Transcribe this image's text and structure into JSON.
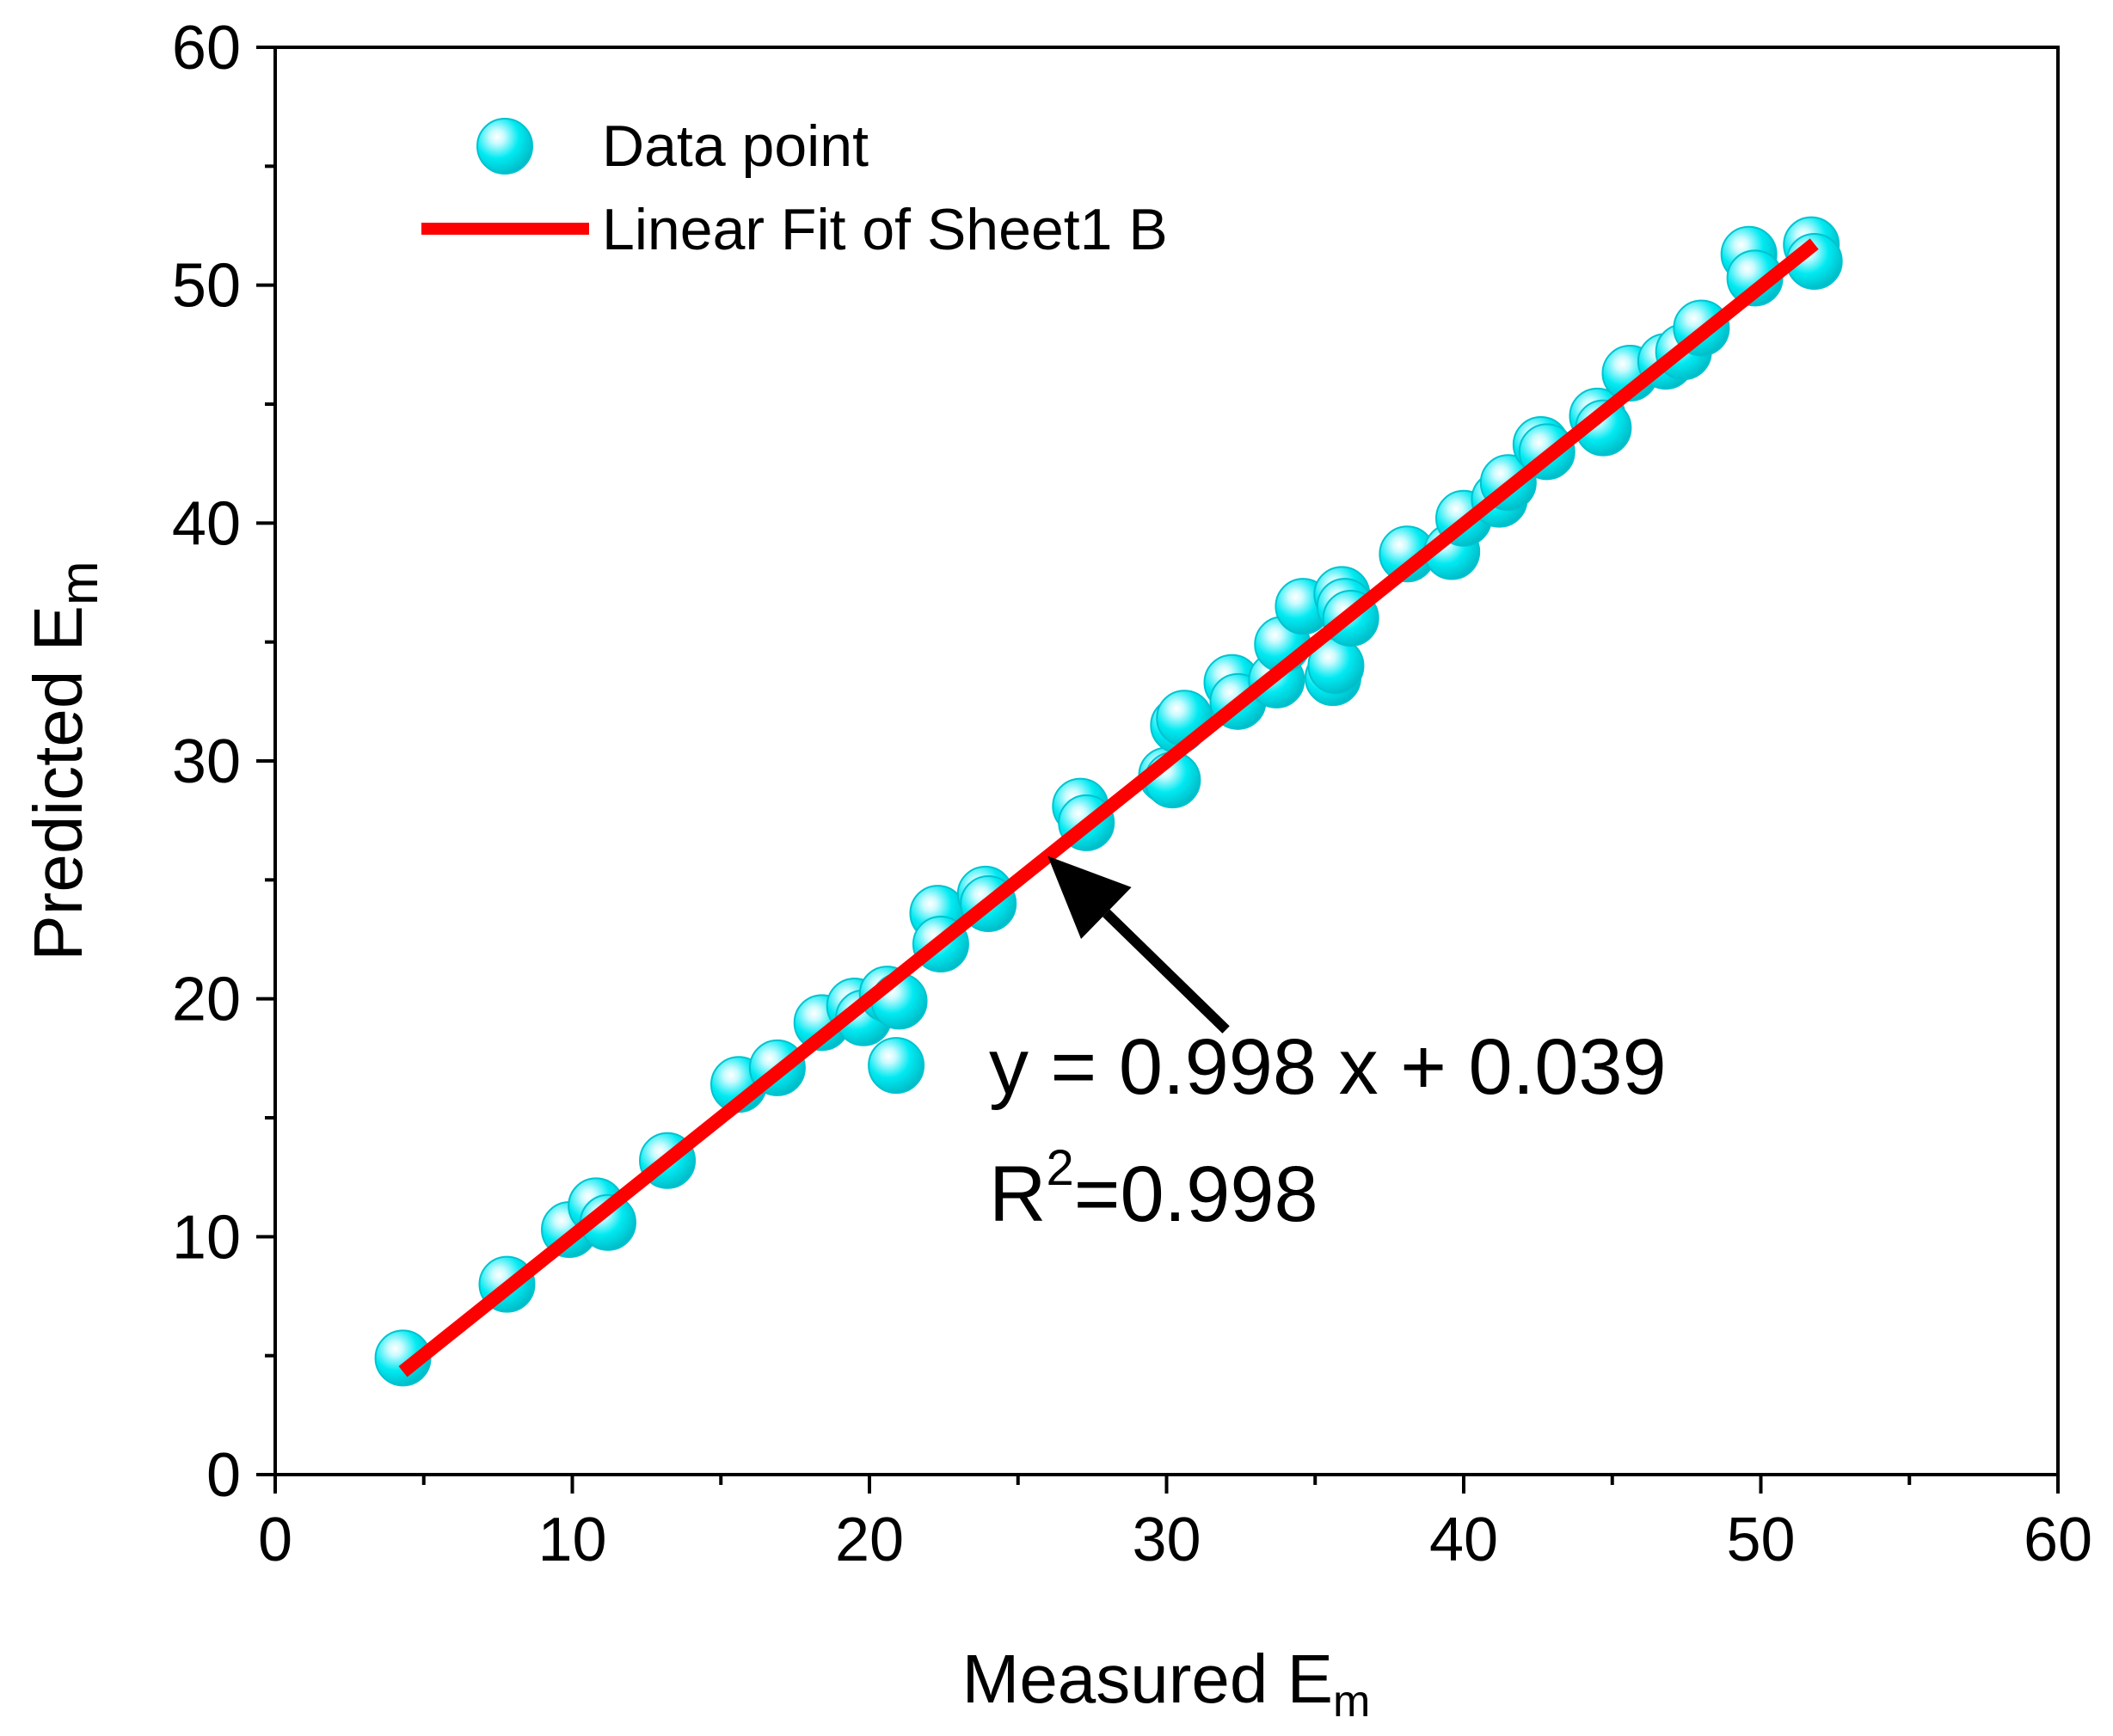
{
  "chart_data": {
    "type": "scatter",
    "title": "",
    "xlabel": {
      "main": "Measured E",
      "sub": "m"
    },
    "ylabel": {
      "main": "Predicted E",
      "sub": "m"
    },
    "xlim": [
      0,
      60
    ],
    "ylim": [
      0,
      60
    ],
    "xticks": [
      0,
      10,
      20,
      30,
      40,
      50,
      60
    ],
    "yticks": [
      0,
      10,
      20,
      30,
      40,
      50,
      60
    ],
    "minor_tick_step": 5,
    "legend": {
      "position": "top-left",
      "entries": [
        {
          "label": "Data point",
          "kind": "marker"
        },
        {
          "label": "Linear Fit of Sheet1 B",
          "kind": "line"
        }
      ]
    },
    "series": [
      {
        "name": "Data point",
        "color": "#00e5ee",
        "points": [
          [
            4.3,
            4.9
          ],
          [
            7.8,
            8.0
          ],
          [
            9.9,
            10.3
          ],
          [
            10.8,
            11.3
          ],
          [
            11.2,
            10.6
          ],
          [
            13.2,
            13.2
          ],
          [
            15.6,
            16.4
          ],
          [
            16.9,
            17.1
          ],
          [
            18.4,
            19.0
          ],
          [
            19.5,
            19.7
          ],
          [
            19.8,
            19.2
          ],
          [
            20.6,
            20.2
          ],
          [
            20.9,
            17.2
          ],
          [
            21.0,
            19.9
          ],
          [
            22.3,
            23.6
          ],
          [
            22.4,
            22.3
          ],
          [
            23.9,
            24.4
          ],
          [
            24.0,
            24.0
          ],
          [
            27.1,
            28.1
          ],
          [
            27.3,
            27.4
          ],
          [
            30.0,
            29.4
          ],
          [
            30.2,
            29.2
          ],
          [
            30.4,
            31.5
          ],
          [
            30.6,
            31.8
          ],
          [
            32.2,
            33.3
          ],
          [
            32.4,
            32.5
          ],
          [
            33.7,
            33.4
          ],
          [
            33.9,
            34.9
          ],
          [
            34.6,
            36.5
          ],
          [
            35.6,
            33.5
          ],
          [
            35.7,
            34.0
          ],
          [
            35.9,
            37.0
          ],
          [
            36.0,
            36.5
          ],
          [
            36.2,
            36.0
          ],
          [
            38.1,
            38.7
          ],
          [
            39.6,
            38.8
          ],
          [
            40.0,
            40.2
          ],
          [
            41.2,
            41.0
          ],
          [
            41.5,
            41.7
          ],
          [
            42.6,
            43.3
          ],
          [
            42.8,
            43.0
          ],
          [
            44.5,
            44.5
          ],
          [
            44.7,
            44.0
          ],
          [
            45.6,
            46.3
          ],
          [
            46.8,
            46.8
          ],
          [
            47.4,
            47.2
          ],
          [
            48.0,
            48.2
          ],
          [
            49.6,
            51.3
          ],
          [
            49.8,
            50.3
          ],
          [
            51.7,
            51.7
          ],
          [
            51.8,
            51.0
          ]
        ]
      },
      {
        "name": "Linear Fit of Sheet1 B",
        "color": "#ff0000",
        "fit": {
          "slope": 0.998,
          "intercept": 0.039,
          "x_range": [
            4.3,
            51.8
          ]
        }
      }
    ],
    "annotations": {
      "equation": "y = 0.998 x + 0.039",
      "r2_label": "R",
      "r2_sup": "2",
      "r2_value": "=0.998",
      "arrow": {
        "from": [
          32.0,
          18.7
        ],
        "to": [
          26.0,
          26.0
        ]
      }
    }
  }
}
